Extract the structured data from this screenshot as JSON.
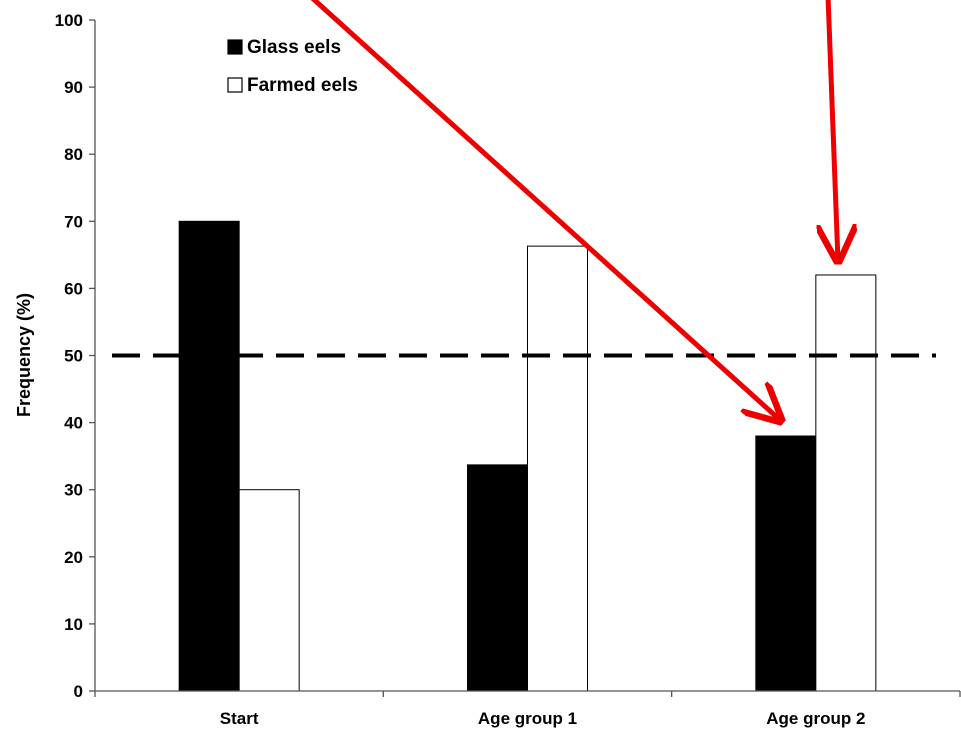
{
  "chart_data": {
    "type": "bar",
    "categories": [
      "Start",
      "Age group 1",
      "Age group 2"
    ],
    "series": [
      {
        "name": "Glass eels",
        "values": [
          70,
          33.7,
          38
        ],
        "fill": "#000000"
      },
      {
        "name": "Farmed eels",
        "values": [
          30,
          66.3,
          62
        ],
        "fill": "#ffffff"
      }
    ],
    "ylabel": "Frequency (%)",
    "ylim": [
      0,
      100
    ],
    "yticks": [
      0,
      10,
      20,
      30,
      40,
      50,
      60,
      70,
      80,
      90,
      100
    ],
    "reference_line": {
      "y": 50,
      "style": "dashed"
    },
    "legend_placement": "top-left",
    "grid": false,
    "annotations": {
      "arrows": [
        {
          "target_category": "Age group 2",
          "target_series": "Glass eels",
          "color": "#ee0000"
        },
        {
          "target_category": "Age group 2",
          "target_series": "Farmed eels",
          "color": "#ee0000"
        }
      ]
    }
  }
}
